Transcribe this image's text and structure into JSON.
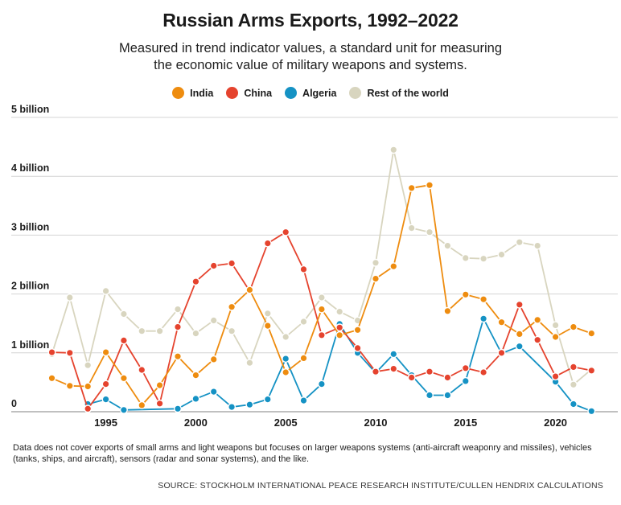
{
  "header": {
    "title": "Russian Arms Exports, 1992–2022",
    "subtitle_line1": "Measured in trend indicator values, a standard unit for measuring",
    "subtitle_line2": "the economic value of military weapons and systems."
  },
  "footer": {
    "note": "Data does not cover exports of small arms and light weapons but focuses on larger weapons systems (anti-aircraft weaponry and missiles), vehicles (tanks, ships, and aircraft), sensors (radar and sonar systems), and the like.",
    "source": "SOURCE: STOCKHOLM INTERNATIONAL PEACE RESEARCH INSTITUTE/CULLEN HENDRIX CALCULATIONS"
  },
  "chart_data": {
    "type": "line",
    "title": "Russian Arms Exports, 1992–2022",
    "xlabel": "",
    "ylabel": "",
    "x": [
      1992,
      1993,
      1994,
      1995,
      1996,
      1997,
      1998,
      1999,
      2000,
      2001,
      2002,
      2003,
      2004,
      2005,
      2006,
      2007,
      2008,
      2009,
      2010,
      2011,
      2012,
      2013,
      2014,
      2015,
      2016,
      2017,
      2018,
      2019,
      2020,
      2021,
      2022
    ],
    "xlim": [
      1991.8,
      2022.3
    ],
    "ylim": [
      0,
      5
    ],
    "x_ticks": [
      1995,
      2000,
      2005,
      2010,
      2015,
      2020
    ],
    "x_tick_labels": [
      "1995",
      "2000",
      "2005",
      "2010",
      "2015",
      "2020"
    ],
    "y_ticks": [
      0,
      1,
      2,
      3,
      4,
      5
    ],
    "y_tick_labels": [
      "0",
      "1 billion",
      "2 billion",
      "3 billion",
      "4 billion",
      "5 billion"
    ],
    "grid": "horizontal",
    "legend_position": "top-center",
    "series": [
      {
        "name": "Rest of the world",
        "color": "#d8d5bf",
        "values": [
          0.98,
          1.94,
          0.79,
          2.05,
          1.66,
          1.37,
          1.37,
          1.74,
          1.33,
          1.55,
          1.37,
          0.83,
          1.67,
          1.27,
          1.53,
          1.94,
          1.7,
          1.55,
          2.53,
          4.45,
          3.12,
          3.05,
          2.82,
          2.61,
          2.6,
          2.67,
          2.88,
          2.82,
          1.47,
          0.46,
          0.72
        ]
      },
      {
        "name": "Algeria",
        "color": "#1592c4",
        "values": [
          null,
          null,
          0.13,
          0.21,
          0.03,
          null,
          null,
          0.05,
          0.22,
          0.34,
          0.08,
          0.12,
          0.21,
          0.9,
          0.19,
          0.47,
          1.49,
          1.0,
          0.66,
          0.98,
          0.62,
          0.28,
          0.28,
          0.52,
          1.58,
          0.99,
          1.11,
          null,
          0.51,
          0.13,
          0.01
        ]
      },
      {
        "name": "China",
        "color": "#e5432e",
        "values": [
          1.01,
          1.0,
          0.05,
          0.47,
          1.21,
          0.71,
          0.14,
          1.44,
          2.21,
          2.48,
          2.52,
          2.05,
          2.86,
          3.05,
          2.42,
          1.3,
          1.43,
          1.08,
          0.68,
          0.73,
          0.58,
          0.68,
          0.58,
          0.74,
          0.67,
          1.0,
          1.82,
          1.22,
          0.6,
          0.76,
          0.7
        ]
      },
      {
        "name": "India",
        "color": "#ee8c0f",
        "values": [
          0.57,
          0.44,
          0.43,
          1.01,
          0.57,
          0.11,
          0.45,
          0.94,
          0.62,
          0.89,
          1.78,
          2.07,
          1.46,
          0.67,
          0.91,
          1.74,
          1.3,
          1.39,
          2.26,
          2.47,
          3.8,
          3.85,
          1.71,
          1.99,
          1.91,
          1.52,
          1.32,
          1.56,
          1.27,
          1.44,
          1.33
        ]
      }
    ],
    "legend_order": [
      "India",
      "China",
      "Algeria",
      "Rest of the world"
    ]
  }
}
